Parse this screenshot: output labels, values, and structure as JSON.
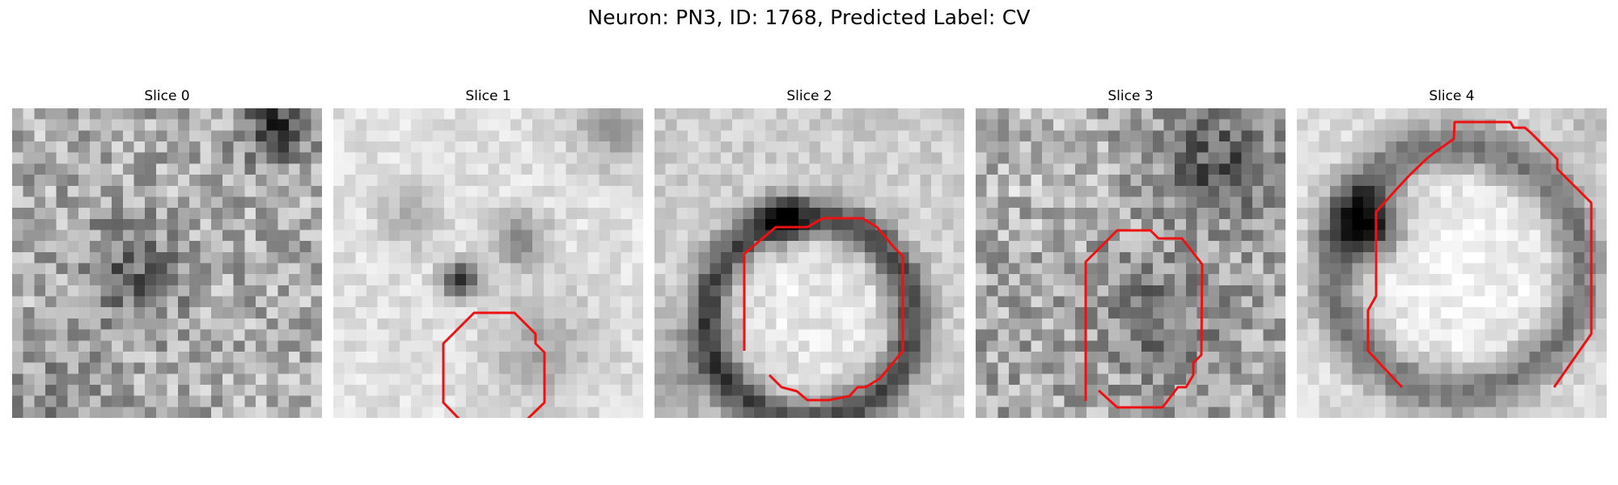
{
  "figure": {
    "title": "Neuron: PN3, ID: 1768, Predicted Label: CV"
  },
  "panels": [
    {
      "title": "Slice 0",
      "contour": "none"
    },
    {
      "title": "Slice 1",
      "contour": "partial octagon, lower right, open at bottom"
    },
    {
      "title": "Slice 2",
      "contour": "octagon, lower center"
    },
    {
      "title": "Slice 3",
      "contour": "octagon, lower center"
    },
    {
      "title": "Slice 4",
      "contour": "large octagon"
    }
  ],
  "colors": {
    "contour": "#ee1111",
    "background": "#ffffff",
    "colormap": "grayscale"
  }
}
